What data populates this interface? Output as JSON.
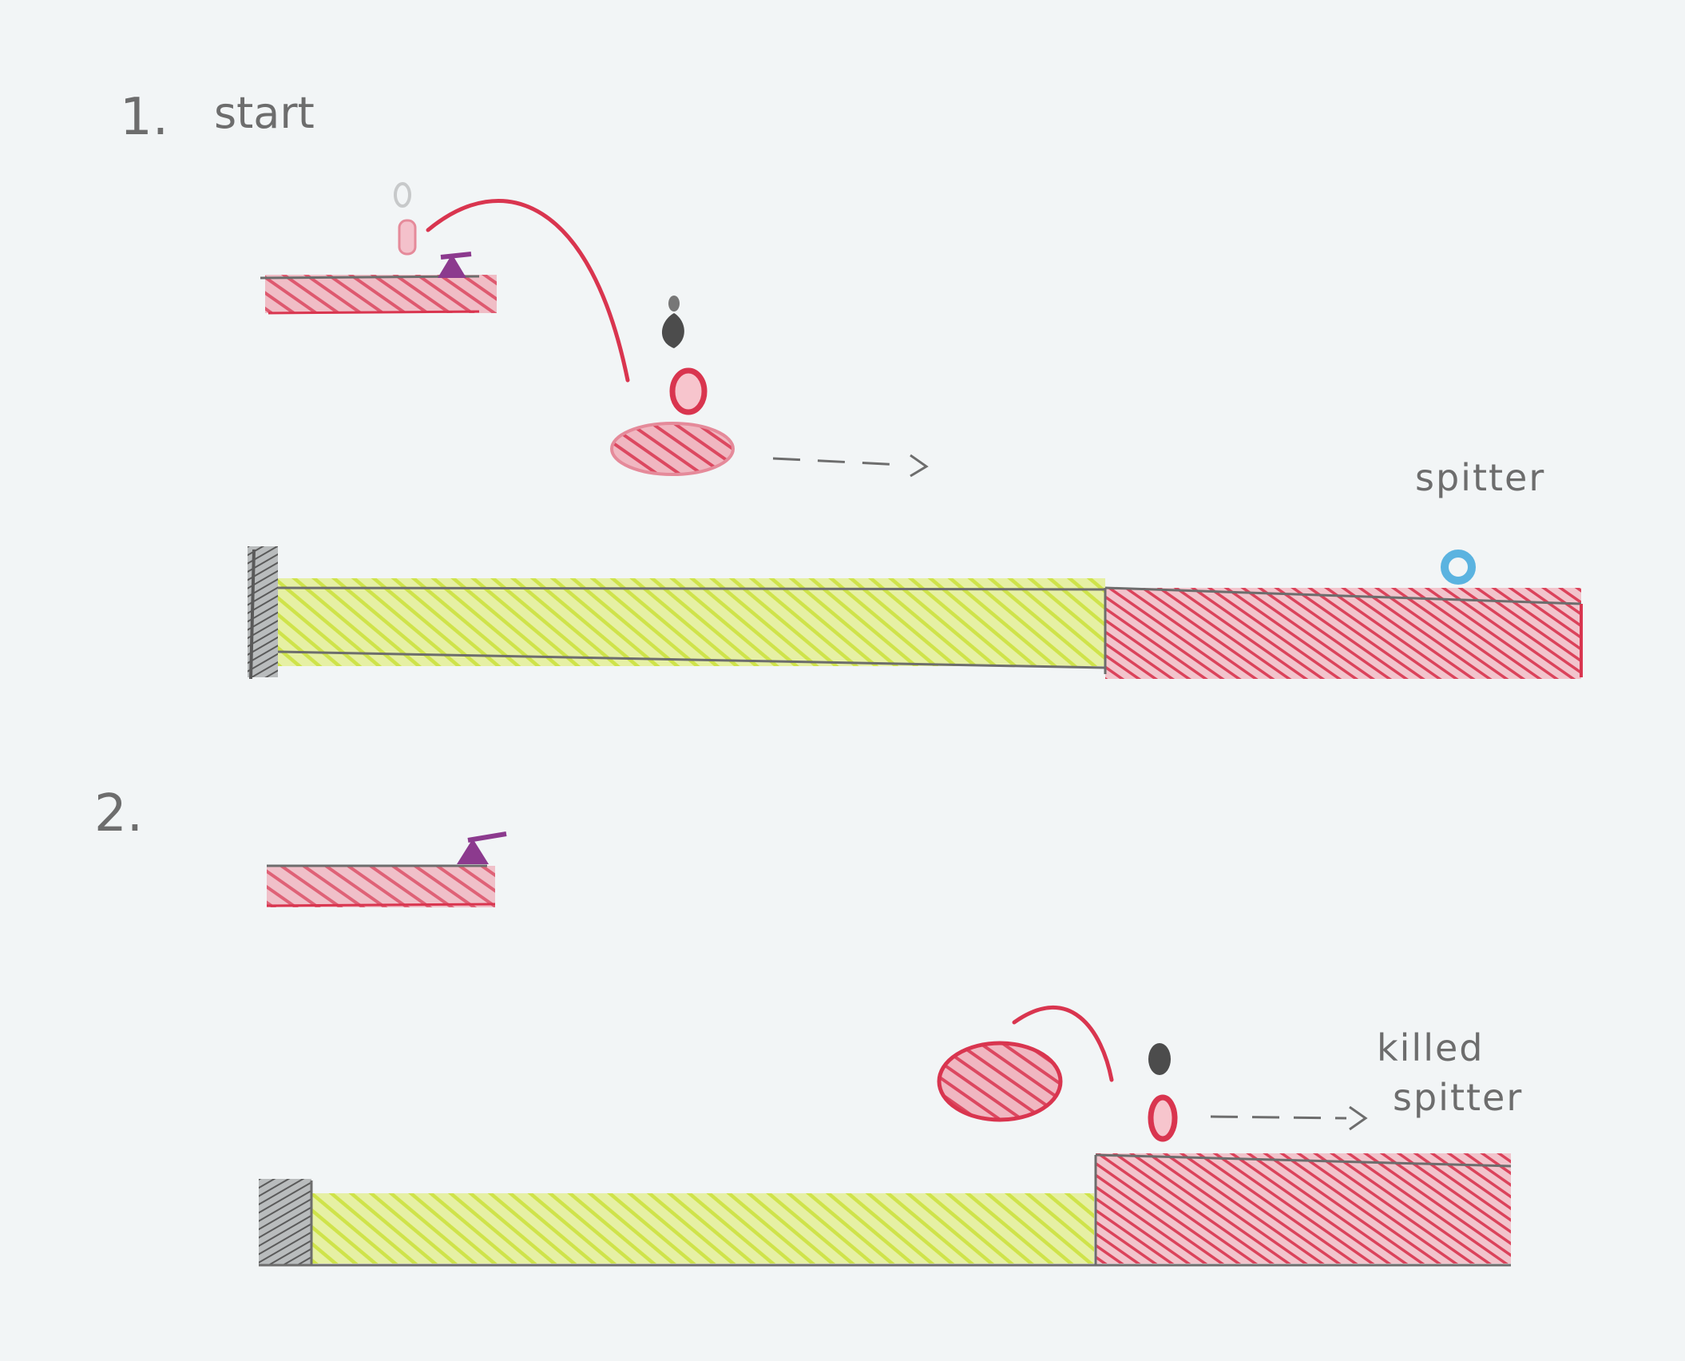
{
  "panels": [
    {
      "number": "1.",
      "heading": "start",
      "note": "spitter"
    },
    {
      "number": "2.",
      "note_line1": "killed",
      "note_line2": "spitter"
    }
  ],
  "colors": {
    "paper": "#f2f5f6",
    "pencil_gray": "#6d6d6d",
    "red": "#d9354f",
    "pink": "#e58a9a",
    "yellow_green": "#cfe34a",
    "purple": "#8c3a8e",
    "blue": "#5bb3e0"
  }
}
